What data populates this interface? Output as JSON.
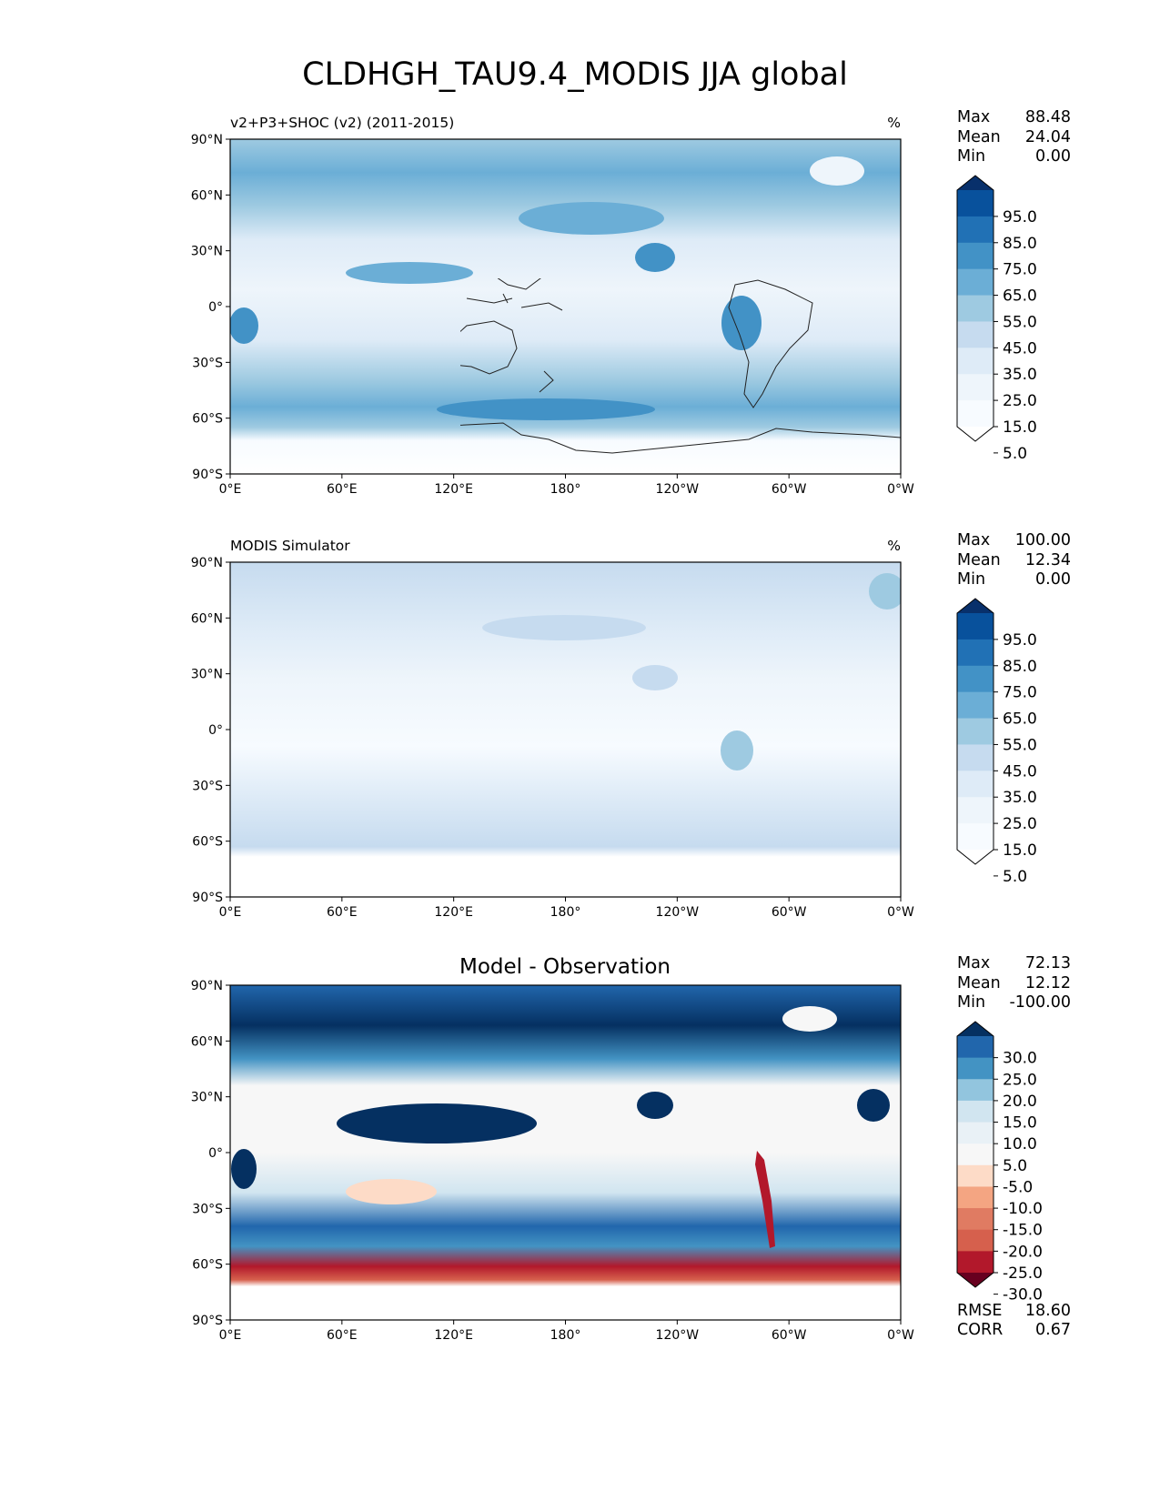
{
  "title": "CLDHGH_TAU9.4_MODIS JJA global",
  "lon_ticks": [
    "0°E",
    "60°E",
    "120°E",
    "180°",
    "120°W",
    "60°W",
    "0°W"
  ],
  "lat_ticks": [
    "90°N",
    "60°N",
    "30°N",
    "0°",
    "30°S",
    "60°S",
    "90°S"
  ],
  "chart_data": [
    {
      "type": "heatmap",
      "name": "test",
      "title_left": "v2+P3+SHOC (v2) (2011-2015)",
      "title_center": "",
      "units": "%",
      "stats": [
        {
          "label": "Max",
          "value": "88.48"
        },
        {
          "label": "Mean",
          "value": "24.04"
        },
        {
          "label": "Min",
          "value": "0.00"
        }
      ],
      "colorbar": {
        "levels": [
          "95.0",
          "85.0",
          "75.0",
          "65.0",
          "55.0",
          "45.0",
          "35.0",
          "25.0",
          "15.0",
          "5.0"
        ],
        "colors": [
          "#08306b",
          "#08519c",
          "#2171b5",
          "#4292c6",
          "#6baed6",
          "#9ecae1",
          "#c6dbef",
          "#deebf7",
          "#eef5fb",
          "#f7fbff",
          "#ffffff"
        ]
      },
      "xlim": [
        0,
        360
      ],
      "ylim": [
        -90,
        90
      ]
    },
    {
      "type": "heatmap",
      "name": "reference",
      "title_left": "MODIS Simulator",
      "title_center": "",
      "units": "%",
      "stats": [
        {
          "label": "Max",
          "value": "100.00"
        },
        {
          "label": "Mean",
          "value": "12.34"
        },
        {
          "label": "Min",
          "value": "0.00"
        }
      ],
      "colorbar": {
        "levels": [
          "95.0",
          "85.0",
          "75.0",
          "65.0",
          "55.0",
          "45.0",
          "35.0",
          "25.0",
          "15.0",
          "5.0"
        ],
        "colors": [
          "#08306b",
          "#08519c",
          "#2171b5",
          "#4292c6",
          "#6baed6",
          "#9ecae1",
          "#c6dbef",
          "#deebf7",
          "#eef5fb",
          "#f7fbff",
          "#ffffff"
        ]
      },
      "xlim": [
        0,
        360
      ],
      "ylim": [
        -90,
        90
      ]
    },
    {
      "type": "heatmap",
      "name": "difference",
      "title_left": "",
      "title_center": "Model - Observation",
      "units": "",
      "stats": [
        {
          "label": "Max",
          "value": "72.13"
        },
        {
          "label": "Mean",
          "value": "12.12"
        },
        {
          "label": "Min",
          "value": "-100.00"
        }
      ],
      "colorbar": {
        "levels": [
          "30.0",
          "25.0",
          "20.0",
          "15.0",
          "10.0",
          "5.0",
          "-5.0",
          "-10.0",
          "-15.0",
          "-20.0",
          "-25.0",
          "-30.0"
        ],
        "colors": [
          "#053061",
          "#2166ac",
          "#4393c3",
          "#92c5de",
          "#d1e5f0",
          "#e9f1f6",
          "#f7f7f7",
          "#fddbc7",
          "#f4a582",
          "#e07b62",
          "#d6604d",
          "#b2182b",
          "#67001f"
        ]
      },
      "extra_stats": [
        {
          "label": "RMSE",
          "value": "18.60"
        },
        {
          "label": "CORR",
          "value": "0.67"
        }
      ],
      "xlim": [
        0,
        360
      ],
      "ylim": [
        -90,
        90
      ]
    }
  ]
}
